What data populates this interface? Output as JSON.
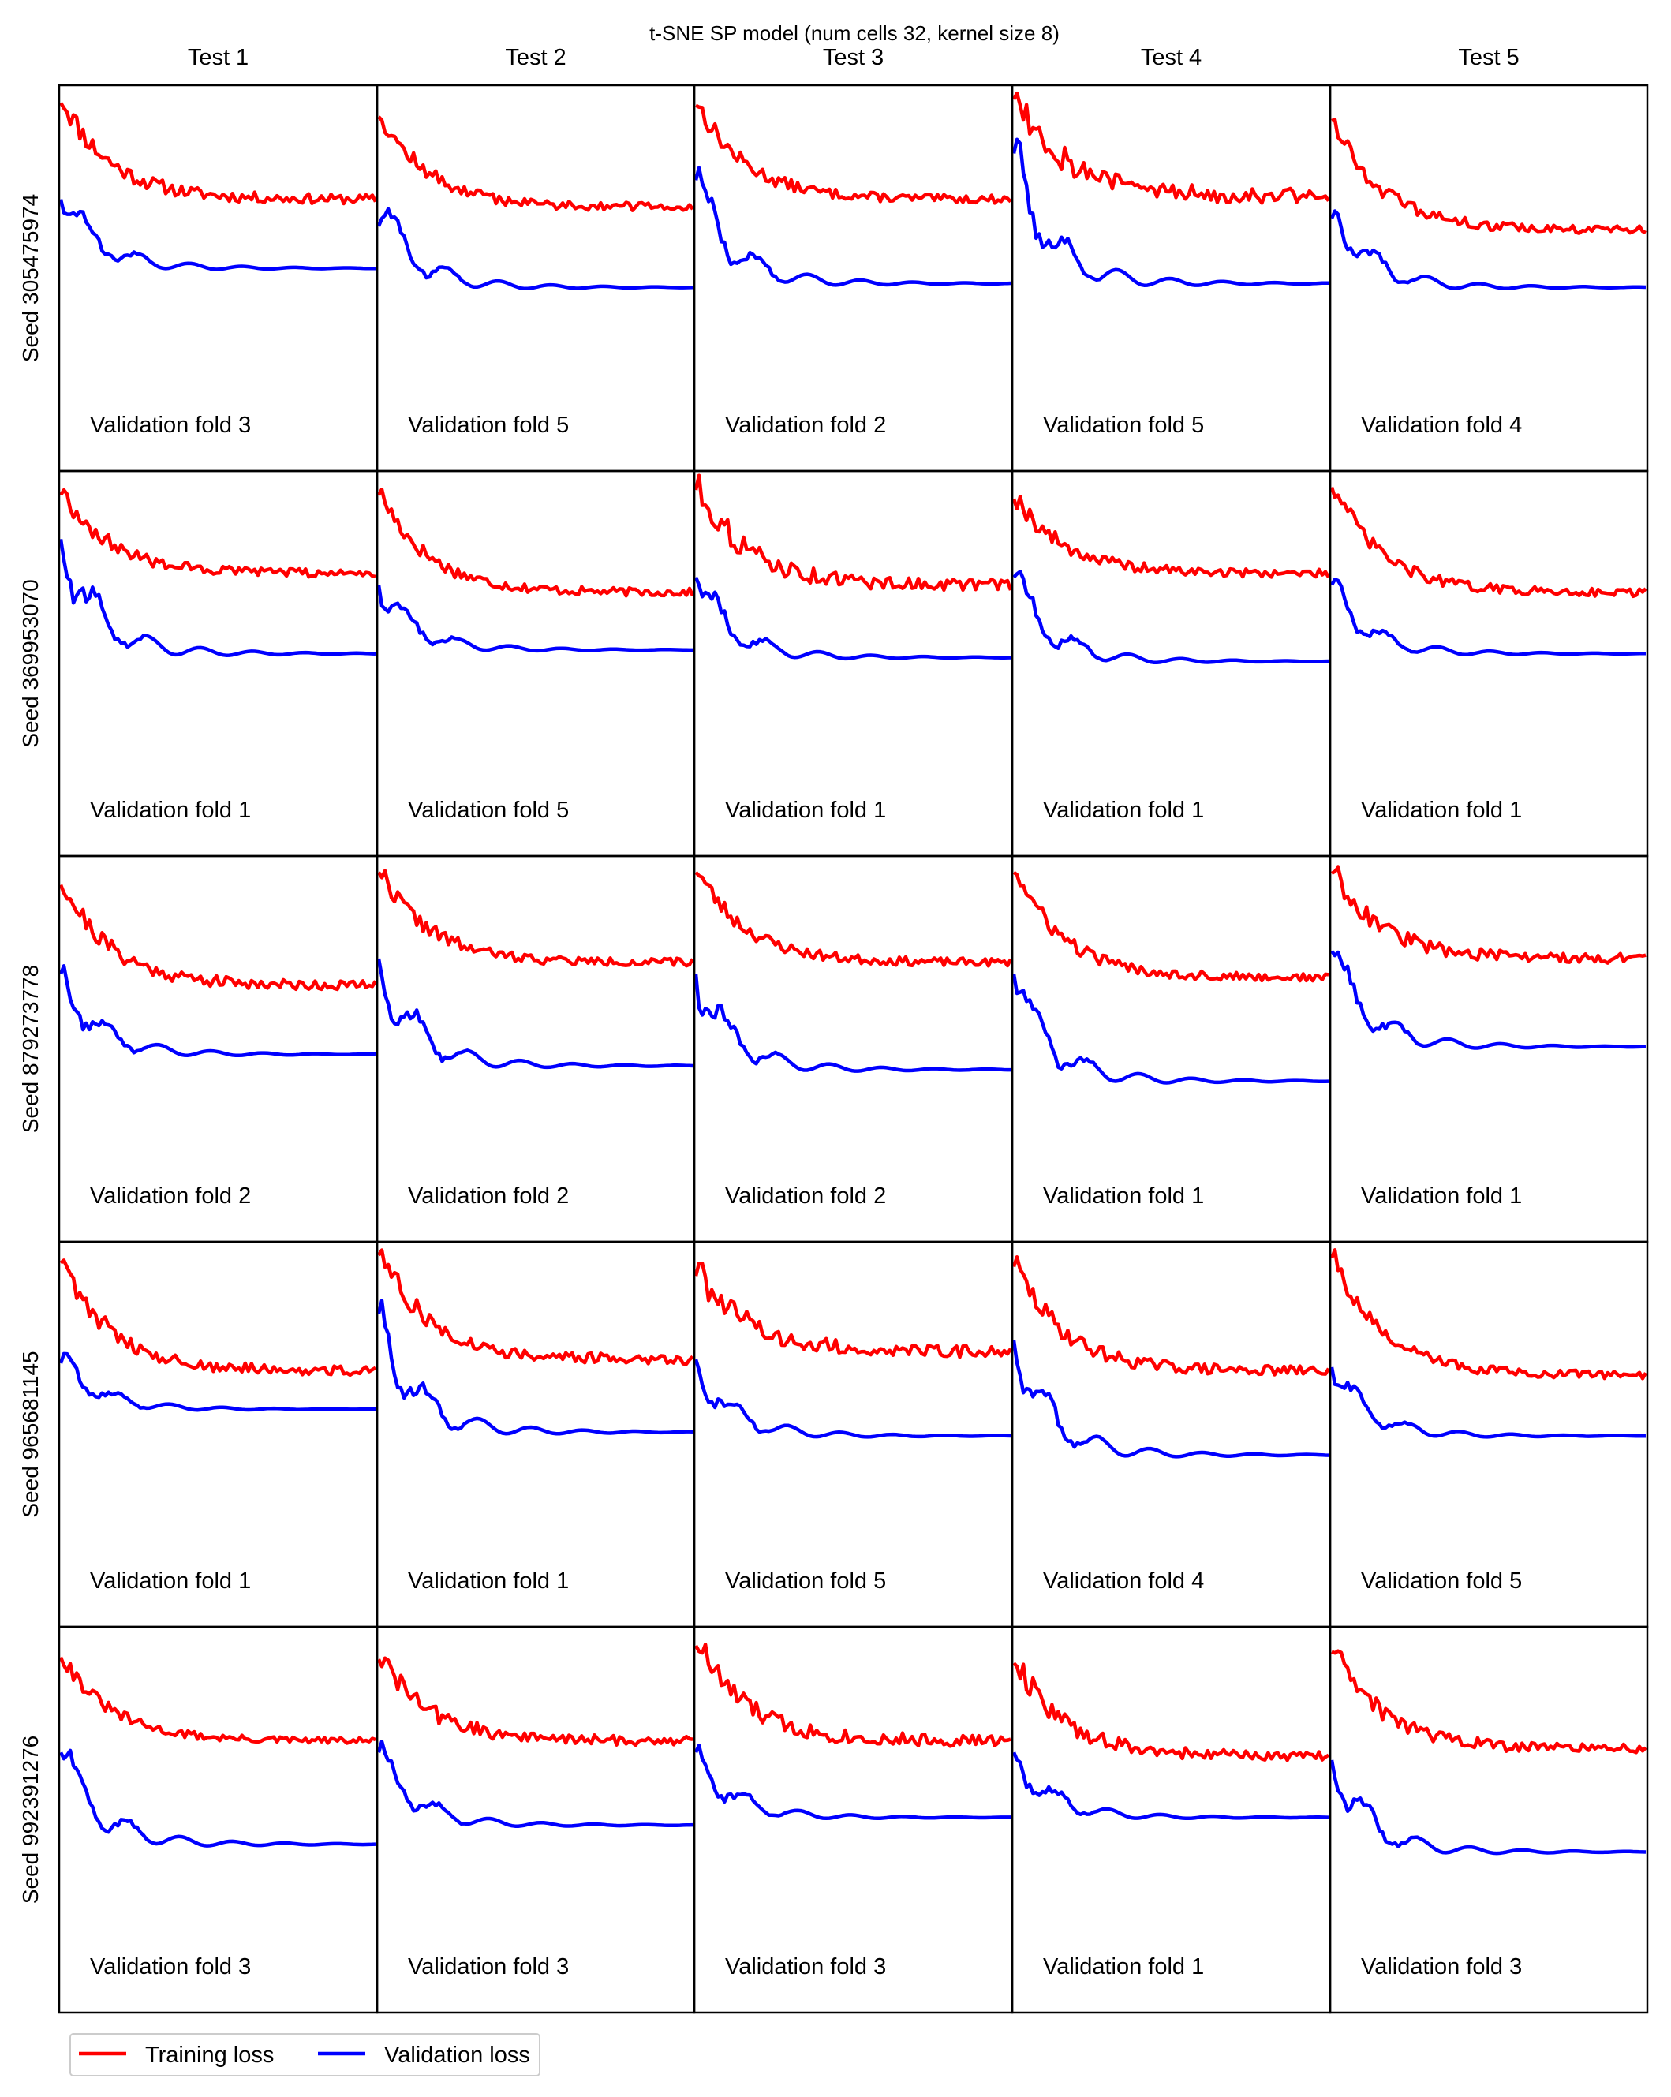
{
  "chart_data": {
    "type": "line",
    "title": "t-SNE SP model (num cells 32, kernel size 8)",
    "columns": [
      "Test 1",
      "Test 2",
      "Test 3",
      "Test 4",
      "Test 5"
    ],
    "rows": [
      "Seed 305475974",
      "Seed 369953070",
      "Seed 879273778",
      "Seed 965681145",
      "Seed 992391276"
    ],
    "grid": false,
    "axes_ticks_shown": false,
    "legend": {
      "placement": "bottom-left",
      "entries": [
        {
          "label": "Training loss",
          "color": "#ff0000"
        },
        {
          "label": "Validation loss",
          "color": "#0000ff"
        }
      ]
    },
    "ylim": [
      0,
      1
    ],
    "epochs": 100,
    "panels": [
      [
        {
          "fold": "Validation fold 3",
          "train": {
            "start": 0.98,
            "end": 0.71,
            "noise": 0.012
          },
          "val": {
            "start": 0.71,
            "peak": 0.73,
            "end": 0.53
          }
        },
        {
          "fold": "Validation fold 5",
          "train": {
            "start": 0.94,
            "end": 0.69,
            "noise": 0.01
          },
          "val": {
            "start": 0.64,
            "peak": 0.7,
            "end": 0.48
          }
        },
        {
          "fold": "Validation fold 2",
          "train": {
            "start": 0.97,
            "end": 0.71,
            "noise": 0.01
          },
          "val": {
            "start": 0.76,
            "peak": 0.76,
            "end": 0.49
          }
        },
        {
          "fold": "Validation fold 5",
          "train": {
            "start": 1.0,
            "end": 0.72,
            "noise": 0.02
          },
          "val": {
            "start": 0.83,
            "peak": 0.83,
            "end": 0.49
          }
        },
        {
          "fold": "Validation fold 4",
          "train": {
            "start": 0.93,
            "end": 0.63,
            "noise": 0.01
          },
          "val": {
            "start": 0.66,
            "peak": 0.7,
            "end": 0.48
          }
        }
      ],
      [
        {
          "fold": "Validation fold 1",
          "train": {
            "start": 0.96,
            "end": 0.74,
            "noise": 0.01
          },
          "val": {
            "start": 0.83,
            "peak": 0.83,
            "end": 0.53
          }
        },
        {
          "fold": "Validation fold 5",
          "train": {
            "start": 0.96,
            "end": 0.69,
            "noise": 0.01
          },
          "val": {
            "start": 0.71,
            "peak": 0.71,
            "end": 0.54
          }
        },
        {
          "fold": "Validation fold 1",
          "train": {
            "start": 0.98,
            "end": 0.71,
            "noise": 0.015
          },
          "val": {
            "start": 0.73,
            "peak": 0.73,
            "end": 0.52
          }
        },
        {
          "fold": "Validation fold 1",
          "train": {
            "start": 0.95,
            "end": 0.74,
            "noise": 0.01
          },
          "val": {
            "start": 0.73,
            "peak": 0.73,
            "end": 0.51
          }
        },
        {
          "fold": "Validation fold 1",
          "train": {
            "start": 0.98,
            "end": 0.69,
            "noise": 0.01
          },
          "val": {
            "start": 0.71,
            "peak": 0.71,
            "end": 0.53
          }
        }
      ],
      [
        {
          "fold": "Validation fold 2",
          "train": {
            "start": 0.95,
            "end": 0.67,
            "noise": 0.012
          },
          "val": {
            "start": 0.7,
            "peak": 0.7,
            "end": 0.49
          }
        },
        {
          "fold": "Validation fold 2",
          "train": {
            "start": 0.98,
            "end": 0.73,
            "noise": 0.01
          },
          "val": {
            "start": 0.74,
            "peak": 0.74,
            "end": 0.46
          }
        },
        {
          "fold": "Validation fold 2",
          "train": {
            "start": 0.98,
            "end": 0.73,
            "noise": 0.01
          },
          "val": {
            "start": 0.7,
            "peak": 0.7,
            "end": 0.45
          }
        },
        {
          "fold": "Validation fold 1",
          "train": {
            "start": 0.98,
            "end": 0.69,
            "noise": 0.01
          },
          "val": {
            "start": 0.7,
            "peak": 0.7,
            "end": 0.42
          }
        },
        {
          "fold": "Validation fold 1",
          "train": {
            "start": 0.98,
            "end": 0.74,
            "noise": 0.012
          },
          "val": {
            "start": 0.76,
            "peak": 0.76,
            "end": 0.51
          }
        }
      ],
      [
        {
          "fold": "Validation fold 1",
          "train": {
            "start": 0.97,
            "end": 0.67,
            "noise": 0.012
          },
          "val": {
            "start": 0.69,
            "peak": 0.71,
            "end": 0.57
          }
        },
        {
          "fold": "Validation fold 1",
          "train": {
            "start": 0.99,
            "end": 0.7,
            "noise": 0.012
          },
          "val": {
            "start": 0.82,
            "peak": 0.82,
            "end": 0.51
          }
        },
        {
          "fold": "Validation fold 5",
          "train": {
            "start": 0.94,
            "end": 0.72,
            "noise": 0.015
          },
          "val": {
            "start": 0.7,
            "peak": 0.7,
            "end": 0.5
          }
        },
        {
          "fold": "Validation fold 4",
          "train": {
            "start": 0.96,
            "end": 0.67,
            "noise": 0.012
          },
          "val": {
            "start": 0.75,
            "peak": 0.75,
            "end": 0.45
          }
        },
        {
          "fold": "Validation fold 5",
          "train": {
            "start": 0.98,
            "end": 0.66,
            "noise": 0.01
          },
          "val": {
            "start": 0.68,
            "peak": 0.68,
            "end": 0.5
          }
        }
      ],
      [
        {
          "fold": "Validation fold 3",
          "train": {
            "start": 0.94,
            "end": 0.71,
            "noise": 0.008
          },
          "val": {
            "start": 0.68,
            "peak": 0.7,
            "end": 0.44
          }
        },
        {
          "fold": "Validation fold 3",
          "train": {
            "start": 0.94,
            "end": 0.71,
            "noise": 0.012
          },
          "val": {
            "start": 0.68,
            "peak": 0.68,
            "end": 0.49
          }
        },
        {
          "fold": "Validation fold 3",
          "train": {
            "start": 0.98,
            "end": 0.71,
            "noise": 0.015
          },
          "val": {
            "start": 0.68,
            "peak": 0.68,
            "end": 0.51
          }
        },
        {
          "fold": "Validation fold 1",
          "train": {
            "start": 0.93,
            "end": 0.67,
            "noise": 0.012
          },
          "val": {
            "start": 0.68,
            "peak": 0.68,
            "end": 0.51
          }
        },
        {
          "fold": "Validation fold 3",
          "train": {
            "start": 0.96,
            "end": 0.69,
            "noise": 0.012
          },
          "val": {
            "start": 0.66,
            "peak": 0.66,
            "end": 0.42
          }
        }
      ]
    ]
  }
}
